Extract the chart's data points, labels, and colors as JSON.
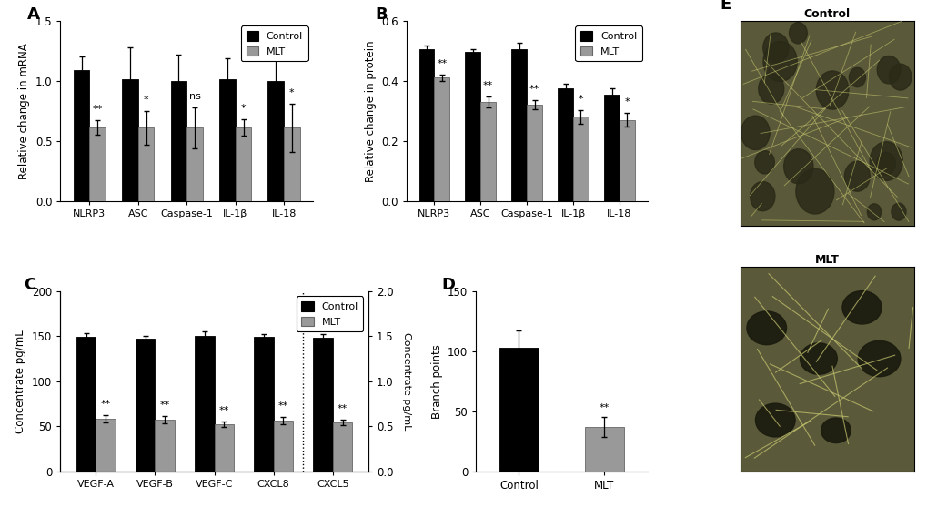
{
  "panel_A": {
    "label": "A",
    "categories": [
      "NLRP3",
      "ASC",
      "Caspase-1",
      "IL-1β",
      "IL-18"
    ],
    "control_vals": [
      1.09,
      1.01,
      1.0,
      1.01,
      1.0
    ],
    "control_err": [
      0.11,
      0.27,
      0.22,
      0.18,
      0.3
    ],
    "mlt_vals": [
      0.61,
      0.61,
      0.61,
      0.61,
      0.61
    ],
    "mlt_err": [
      0.06,
      0.14,
      0.17,
      0.07,
      0.2
    ],
    "sig_labels": [
      "**",
      "*",
      "ns",
      "*",
      "*"
    ],
    "ylabel": "Relative change in mRNA",
    "ylim": [
      0,
      1.5
    ],
    "yticks": [
      0.0,
      0.5,
      1.0,
      1.5
    ]
  },
  "panel_B": {
    "label": "B",
    "categories": [
      "NLRP3",
      "ASC",
      "Caspase-1",
      "IL-1β",
      "IL-18"
    ],
    "control_vals": [
      0.505,
      0.495,
      0.505,
      0.375,
      0.355
    ],
    "control_err": [
      0.012,
      0.01,
      0.022,
      0.015,
      0.02
    ],
    "mlt_vals": [
      0.41,
      0.33,
      0.32,
      0.28,
      0.27
    ],
    "mlt_err": [
      0.012,
      0.018,
      0.015,
      0.022,
      0.022
    ],
    "sig_labels": [
      "**",
      "**",
      "**",
      "*",
      "*"
    ],
    "ylabel": "Relative change in protein",
    "ylim": [
      0,
      0.6
    ],
    "yticks": [
      0.0,
      0.2,
      0.4,
      0.6
    ]
  },
  "panel_C": {
    "label": "C",
    "categories": [
      "VEGF-A",
      "VEGF-B",
      "VEGF-C",
      "CXCL8",
      "CXCL5"
    ],
    "control_vals": [
      149,
      147,
      150,
      149,
      1.48
    ],
    "control_err": [
      4,
      3,
      5,
      3,
      0.04
    ],
    "mlt_vals": [
      58,
      57,
      52,
      56,
      0.54
    ],
    "mlt_err": [
      4,
      4,
      3,
      4,
      0.03
    ],
    "sig_labels": [
      "**",
      "**",
      "**",
      "**",
      "**"
    ],
    "ylabel_left": "Concentrate pg/mL",
    "ylabel_right": "Concentrate pg/mL",
    "ylim_left": [
      0,
      200
    ],
    "yticks_left": [
      0,
      50,
      100,
      150,
      200
    ],
    "ylim_right": [
      0,
      2.0
    ],
    "yticks_right": [
      0.0,
      0.5,
      1.0,
      1.5,
      2.0
    ]
  },
  "panel_D": {
    "label": "D",
    "categories": [
      "Control",
      "MLT"
    ],
    "vals": [
      103,
      37
    ],
    "err": [
      14,
      8
    ],
    "sig_labels": [
      "",
      "**"
    ],
    "ylabel": "Branch points",
    "ylim": [
      0,
      150
    ],
    "yticks": [
      0,
      50,
      100,
      150
    ]
  },
  "colors": {
    "control": "#000000",
    "mlt": "#999999"
  },
  "legend": {
    "control_label": "Control",
    "mlt_label": "MLT"
  },
  "layout": {
    "fig_width": 10.2,
    "fig_height": 5.69
  }
}
